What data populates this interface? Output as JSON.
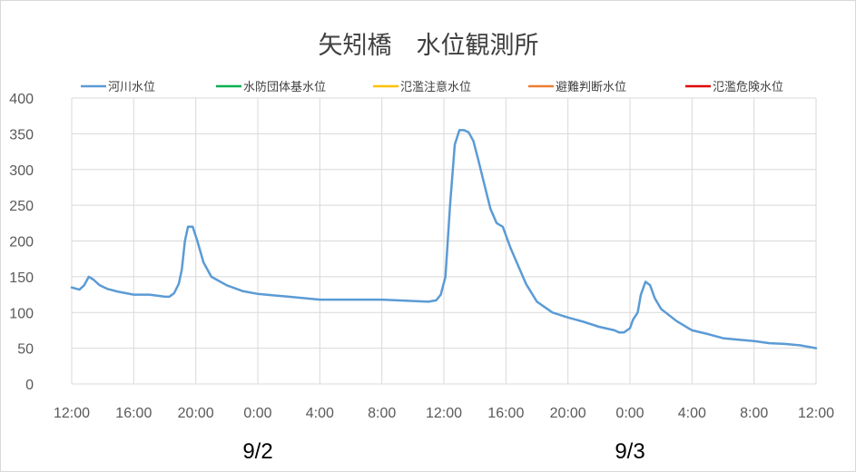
{
  "chart_data": {
    "type": "line",
    "title": "矢矧橋　水位観測所",
    "xlabel": "",
    "ylabel": "",
    "ylim": [
      0,
      400
    ],
    "yticks": [
      0,
      50,
      100,
      150,
      200,
      250,
      300,
      350,
      400
    ],
    "xlim": [
      0,
      48
    ],
    "xticks": [
      {
        "at": 0,
        "label": "12:00"
      },
      {
        "at": 4,
        "label": "16:00"
      },
      {
        "at": 8,
        "label": "20:00"
      },
      {
        "at": 12,
        "label": "0:00"
      },
      {
        "at": 16,
        "label": "4:00"
      },
      {
        "at": 20,
        "label": "8:00"
      },
      {
        "at": 24,
        "label": "12:00"
      },
      {
        "at": 28,
        "label": "16:00"
      },
      {
        "at": 32,
        "label": "20:00"
      },
      {
        "at": 36,
        "label": "0:00"
      },
      {
        "at": 40,
        "label": "4:00"
      },
      {
        "at": 44,
        "label": "8:00"
      },
      {
        "at": 48,
        "label": "12:00"
      }
    ],
    "date_labels": [
      {
        "at": 12,
        "label": "9/2"
      },
      {
        "at": 36,
        "label": "9/3"
      }
    ],
    "grid": true,
    "legend_position": "top",
    "series": [
      {
        "name": "河川水位",
        "color": "#5b9bd5",
        "x": [
          0,
          0.5,
          0.8,
          1.1,
          1.4,
          1.8,
          2.3,
          3,
          4,
          5,
          5.7,
          6,
          6.3,
          6.6,
          6.9,
          7.1,
          7.3,
          7.5,
          7.8,
          8.1,
          8.5,
          9,
          10,
          11,
          12,
          13,
          14,
          15,
          16,
          17,
          18,
          19,
          20,
          21,
          22,
          23,
          23.5,
          23.8,
          24.1,
          24.4,
          24.7,
          25,
          25.3,
          25.6,
          25.9,
          26.2,
          26.6,
          27,
          27.4,
          27.8,
          28.3,
          28.8,
          29.3,
          30,
          31,
          32,
          33,
          34,
          35,
          35.3,
          35.6,
          36,
          36.2,
          36.5,
          36.7,
          37,
          37.3,
          37.6,
          38,
          39,
          40,
          41,
          42,
          43,
          44,
          45,
          46,
          47,
          48
        ],
        "values": [
          135,
          132,
          138,
          150,
          146,
          138,
          133,
          129,
          125,
          125,
          123,
          122,
          122,
          127,
          140,
          160,
          200,
          220,
          220,
          200,
          170,
          150,
          138,
          130,
          126,
          124,
          122,
          120,
          118,
          118,
          118,
          118,
          118,
          117,
          116,
          115,
          117,
          125,
          150,
          250,
          335,
          355,
          355,
          352,
          340,
          315,
          280,
          245,
          225,
          220,
          190,
          165,
          140,
          115,
          100,
          93,
          87,
          80,
          75,
          72,
          72,
          78,
          90,
          100,
          125,
          143,
          138,
          120,
          105,
          88,
          75,
          70,
          64,
          62,
          60,
          57,
          56,
          54,
          50
        ]
      },
      {
        "name": "水防団体基水位",
        "color": "#00b050",
        "values": []
      },
      {
        "name": "氾濫注意水位",
        "color": "#ffc000",
        "values": []
      },
      {
        "name": "避難判断水位",
        "color": "#ed7d31",
        "values": []
      },
      {
        "name": "氾濫危険水位",
        "color": "#e00000",
        "values": []
      }
    ]
  }
}
